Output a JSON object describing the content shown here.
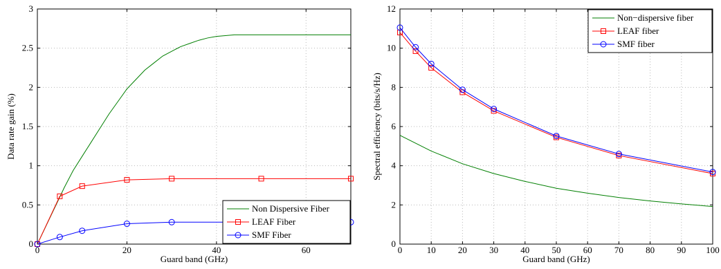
{
  "chart_data": [
    {
      "type": "line",
      "xlabel": "Guard band (GHz)",
      "ylabel": "Data rate gain (%)",
      "xlim": [
        0,
        70
      ],
      "ylim": [
        0,
        3
      ],
      "xticks": [
        0,
        20,
        40,
        60
      ],
      "yticks": [
        0,
        0.5,
        1,
        1.5,
        2,
        2.5,
        3
      ],
      "xtick_labels": [
        "0",
        "20",
        "40",
        "60"
      ],
      "ytick_labels": [
        "0",
        "0.5",
        "1",
        "1.5",
        "2",
        "2.5",
        "3"
      ],
      "grid": true,
      "legend_position": "bottom-right",
      "series": [
        {
          "name": "Non Dispersive Fiber",
          "color": "#007f00",
          "marker": "none",
          "x": [
            0,
            2,
            4,
            6,
            8,
            10,
            12,
            14,
            16,
            18,
            20,
            22,
            24,
            26,
            28,
            30,
            32,
            34,
            36,
            38,
            40,
            42,
            44,
            46,
            48,
            50,
            55,
            60,
            65,
            70
          ],
          "y": [
            0,
            0.24,
            0.48,
            0.72,
            0.94,
            1.12,
            1.3,
            1.48,
            1.66,
            1.82,
            1.98,
            2.1,
            2.22,
            2.31,
            2.4,
            2.46,
            2.52,
            2.56,
            2.6,
            2.63,
            2.65,
            2.66,
            2.67,
            2.67,
            2.67,
            2.67,
            2.67,
            2.67,
            2.67,
            2.67
          ]
        },
        {
          "name": "LEAF Fiber",
          "color": "#ff0000",
          "marker": "square",
          "x": [
            0,
            5,
            10,
            20,
            30,
            50,
            70
          ],
          "y": [
            0,
            0.61,
            0.74,
            0.82,
            0.835,
            0.835,
            0.835
          ]
        },
        {
          "name": "SMF Fiber",
          "color": "#0000ff",
          "marker": "circle",
          "x": [
            0,
            5,
            10,
            20,
            30,
            50,
            70
          ],
          "y": [
            0,
            0.09,
            0.17,
            0.26,
            0.28,
            0.28,
            0.28
          ]
        }
      ]
    },
    {
      "type": "line",
      "xlabel": "Guard band (GHz)",
      "ylabel": "Spectral efficiency (bits/s/Hz)",
      "xlim": [
        0,
        100
      ],
      "ylim": [
        0,
        12
      ],
      "xticks": [
        0,
        10,
        20,
        30,
        40,
        50,
        60,
        70,
        80,
        90,
        100
      ],
      "yticks": [
        0,
        2,
        4,
        6,
        8,
        10,
        12
      ],
      "xtick_labels": [
        "0",
        "10",
        "20",
        "30",
        "40",
        "50",
        "60",
        "70",
        "80",
        "90",
        "100"
      ],
      "ytick_labels": [
        "0",
        "2",
        "4",
        "6",
        "8",
        "10",
        "12"
      ],
      "grid": true,
      "legend_position": "top-right",
      "series": [
        {
          "name": "Non−dispersive fiber",
          "color": "#007f00",
          "marker": "none",
          "x": [
            0,
            10,
            20,
            30,
            40,
            50,
            60,
            70,
            80,
            90,
            100
          ],
          "y": [
            5.55,
            4.75,
            4.1,
            3.6,
            3.2,
            2.85,
            2.6,
            2.38,
            2.2,
            2.05,
            1.92
          ]
        },
        {
          "name": "LEAF fiber",
          "color": "#ff0000",
          "marker": "square",
          "x": [
            0,
            5,
            10,
            20,
            30,
            50,
            70,
            100
          ],
          "y": [
            10.8,
            9.85,
            9.0,
            7.75,
            6.8,
            5.45,
            4.52,
            3.6
          ]
        },
        {
          "name": "SMF fiber",
          "color": "#0000ff",
          "marker": "circle",
          "x": [
            0,
            5,
            10,
            20,
            30,
            50,
            70,
            100
          ],
          "y": [
            11.05,
            10.05,
            9.2,
            7.88,
            6.9,
            5.52,
            4.6,
            3.68
          ]
        }
      ]
    }
  ]
}
